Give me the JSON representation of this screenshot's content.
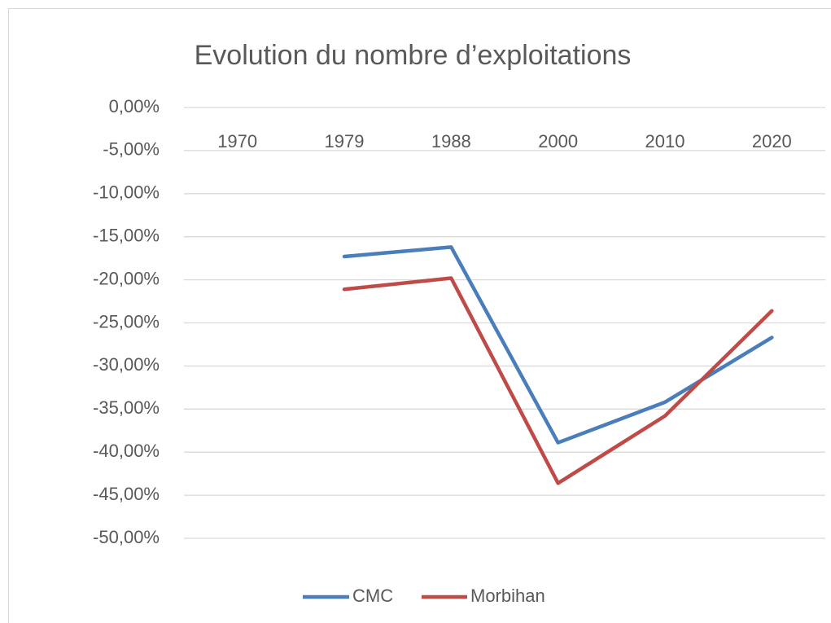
{
  "chart_data": {
    "type": "line",
    "title": "Evolution du nombre d’exploitations",
    "categories": [
      "1970",
      "1979",
      "1988",
      "2000",
      "2010",
      "2020"
    ],
    "series": [
      {
        "name": "CMC",
        "color": "#4a7ebb",
        "values": [
          null,
          -17.3,
          -16.2,
          -38.9,
          -34.2,
          -26.7
        ]
      },
      {
        "name": "Morbihan",
        "color": "#be4b48",
        "values": [
          null,
          -21.1,
          -19.8,
          -43.6,
          -35.8,
          -23.6
        ]
      }
    ],
    "ylim": [
      -50,
      0
    ],
    "yticks": [
      {
        "value": 0,
        "label": "0,00%"
      },
      {
        "value": -5,
        "label": "-5,00%"
      },
      {
        "value": -10,
        "label": "-10,00%"
      },
      {
        "value": -15,
        "label": "-15,00%"
      },
      {
        "value": -20,
        "label": "-20,00%"
      },
      {
        "value": -25,
        "label": "-25,00%"
      },
      {
        "value": -30,
        "label": "-30,00%"
      },
      {
        "value": -35,
        "label": "-35,00%"
      },
      {
        "value": -40,
        "label": "-40,00%"
      },
      {
        "value": -45,
        "label": "-45,00%"
      },
      {
        "value": -50,
        "label": "-50,00%"
      }
    ],
    "grid": true,
    "legend": "bottom"
  }
}
